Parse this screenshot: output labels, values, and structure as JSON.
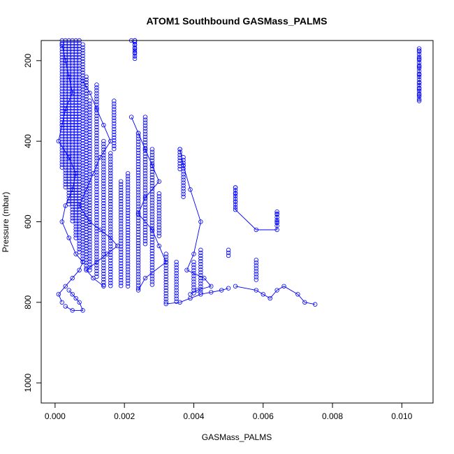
{
  "chart_data": {
    "type": "scatter",
    "title": "ATOM1 Southbound GASMass_PALMS",
    "xlabel": "GASMass_PALMS",
    "ylabel": "Pressure (mbar)",
    "xlim": [
      -0.0004,
      0.0109
    ],
    "ylim": [
      1050,
      150
    ],
    "y_reversed": true,
    "xticks": [
      0.0,
      0.002,
      0.004,
      0.006,
      0.008,
      0.01
    ],
    "xtick_labels": [
      "0.000",
      "0.002",
      "0.004",
      "0.006",
      "0.008",
      "0.010"
    ],
    "yticks": [
      200,
      400,
      600,
      800,
      1000
    ],
    "ytick_labels": [
      "200",
      "400",
      "600",
      "800",
      "1000"
    ],
    "grid": false,
    "marker": "open-circle",
    "connect_points": true,
    "color": "#0000ff",
    "series": [
      {
        "x": [
          0.0002,
          0.0003,
          0.0004,
          0.0005,
          0.0003,
          0.0002,
          0.0001,
          0.0004,
          0.0006,
          0.0005,
          0.0003,
          0.0002,
          0.0004,
          0.0006,
          0.0008,
          0.0007,
          0.0005,
          0.0003,
          0.0001,
          0.0002
        ],
        "y": [
          160,
          200,
          240,
          280,
          320,
          360,
          400,
          440,
          480,
          520,
          560,
          600,
          640,
          680,
          700,
          720,
          740,
          760,
          780,
          800
        ]
      },
      {
        "x": [
          0.0008,
          0.001,
          0.0012,
          0.0014,
          0.0016,
          0.0013,
          0.0011,
          0.0009,
          0.0007,
          0.001,
          0.0013,
          0.0016,
          0.0018,
          0.0015,
          0.0012,
          0.0009,
          0.0011,
          0.0014
        ],
        "y": [
          250,
          280,
          320,
          360,
          400,
          440,
          480,
          520,
          560,
          600,
          620,
          640,
          660,
          680,
          700,
          720,
          740,
          760
        ]
      },
      {
        "x": [
          0.0022,
          0.0024,
          0.0026,
          0.0028,
          0.003,
          0.0026,
          0.0024,
          0.0028,
          0.003,
          0.0032,
          0.0026,
          0.0024
        ],
        "y": [
          340,
          380,
          420,
          460,
          500,
          540,
          580,
          620,
          660,
          700,
          740,
          770
        ]
      },
      {
        "x": [
          0.0036,
          0.0037,
          0.0039,
          0.0042,
          0.004,
          0.0038,
          0.0043,
          0.0045,
          0.0041,
          0.0039
        ],
        "y": [
          420,
          460,
          520,
          600,
          680,
          720,
          740,
          760,
          770,
          780
        ]
      },
      {
        "x": [
          0.0052,
          0.0052,
          0.0052,
          0.0052,
          0.0058,
          0.0064,
          0.0064,
          0.0064
        ],
        "y": [
          515,
          530,
          550,
          570,
          620,
          620,
          600,
          580
        ]
      },
      {
        "x": [
          0.0105,
          0.0105,
          0.0105,
          0.0105,
          0.0105,
          0.0105,
          0.0105,
          0.0105
        ],
        "y": [
          175,
          195,
          215,
          235,
          255,
          270,
          285,
          300
        ]
      },
      {
        "x": [
          0.0052,
          0.0058,
          0.006,
          0.0062,
          0.0064,
          0.0066,
          0.007,
          0.0072,
          0.0075
        ],
        "y": [
          760,
          770,
          780,
          790,
          770,
          760,
          780,
          800,
          805
        ]
      },
      {
        "x": [
          0.0032,
          0.0036,
          0.0039,
          0.0042,
          0.0045,
          0.0048,
          0.005
        ],
        "y": [
          804,
          800,
          790,
          780,
          775,
          770,
          765
        ]
      },
      {
        "x": [
          0.0004,
          0.0005,
          0.0006,
          0.0007,
          0.0008,
          0.0005,
          0.0003
        ],
        "y": [
          770,
          780,
          790,
          800,
          820,
          820,
          810
        ]
      },
      {
        "x": [
          0.0022,
          0.0023,
          0.0023,
          0.0023,
          0.0023
        ],
        "y": [
          140,
          160,
          170,
          180,
          195
        ]
      }
    ],
    "vertical_stacks": [
      {
        "x": 0.0002,
        "y": [
          150,
          470
        ]
      },
      {
        "x": 0.0003,
        "y": [
          150,
          520
        ]
      },
      {
        "x": 0.0004,
        "y": [
          150,
          560
        ]
      },
      {
        "x": 0.0005,
        "y": [
          150,
          600
        ]
      },
      {
        "x": 0.0006,
        "y": [
          150,
          640
        ]
      },
      {
        "x": 0.0007,
        "y": [
          150,
          680
        ]
      },
      {
        "x": 0.0008,
        "y": [
          160,
          700
        ]
      },
      {
        "x": 0.0009,
        "y": [
          240,
          720
        ]
      },
      {
        "x": 0.001,
        "y": [
          300,
          720
        ]
      },
      {
        "x": 0.0012,
        "y": [
          260,
          740
        ]
      },
      {
        "x": 0.0014,
        "y": [
          400,
          760
        ]
      },
      {
        "x": 0.0016,
        "y": [
          430,
          760
        ]
      },
      {
        "x": 0.0017,
        "y": [
          300,
          420
        ]
      },
      {
        "x": 0.0019,
        "y": [
          500,
          760
        ]
      },
      {
        "x": 0.0021,
        "y": [
          480,
          760
        ]
      },
      {
        "x": 0.0023,
        "y": [
          140,
          195
        ]
      },
      {
        "x": 0.0024,
        "y": [
          380,
          770
        ]
      },
      {
        "x": 0.0026,
        "y": [
          340,
          660
        ]
      },
      {
        "x": 0.0028,
        "y": [
          420,
          760
        ]
      },
      {
        "x": 0.003,
        "y": [
          530,
          640
        ]
      },
      {
        "x": 0.0032,
        "y": [
          680,
          804
        ]
      },
      {
        "x": 0.0035,
        "y": [
          700,
          800
        ]
      },
      {
        "x": 0.0036,
        "y": [
          420,
          470
        ]
      },
      {
        "x": 0.0037,
        "y": [
          440,
          540
        ]
      },
      {
        "x": 0.004,
        "y": [
          700,
          780
        ]
      },
      {
        "x": 0.0042,
        "y": [
          670,
          780
        ]
      },
      {
        "x": 0.005,
        "y": [
          670,
          690
        ]
      },
      {
        "x": 0.0052,
        "y": [
          515,
          570
        ]
      },
      {
        "x": 0.0058,
        "y": [
          695,
          750
        ]
      },
      {
        "x": 0.0064,
        "y": [
          575,
          610
        ]
      },
      {
        "x": 0.0105,
        "y": [
          170,
          300
        ]
      }
    ]
  }
}
